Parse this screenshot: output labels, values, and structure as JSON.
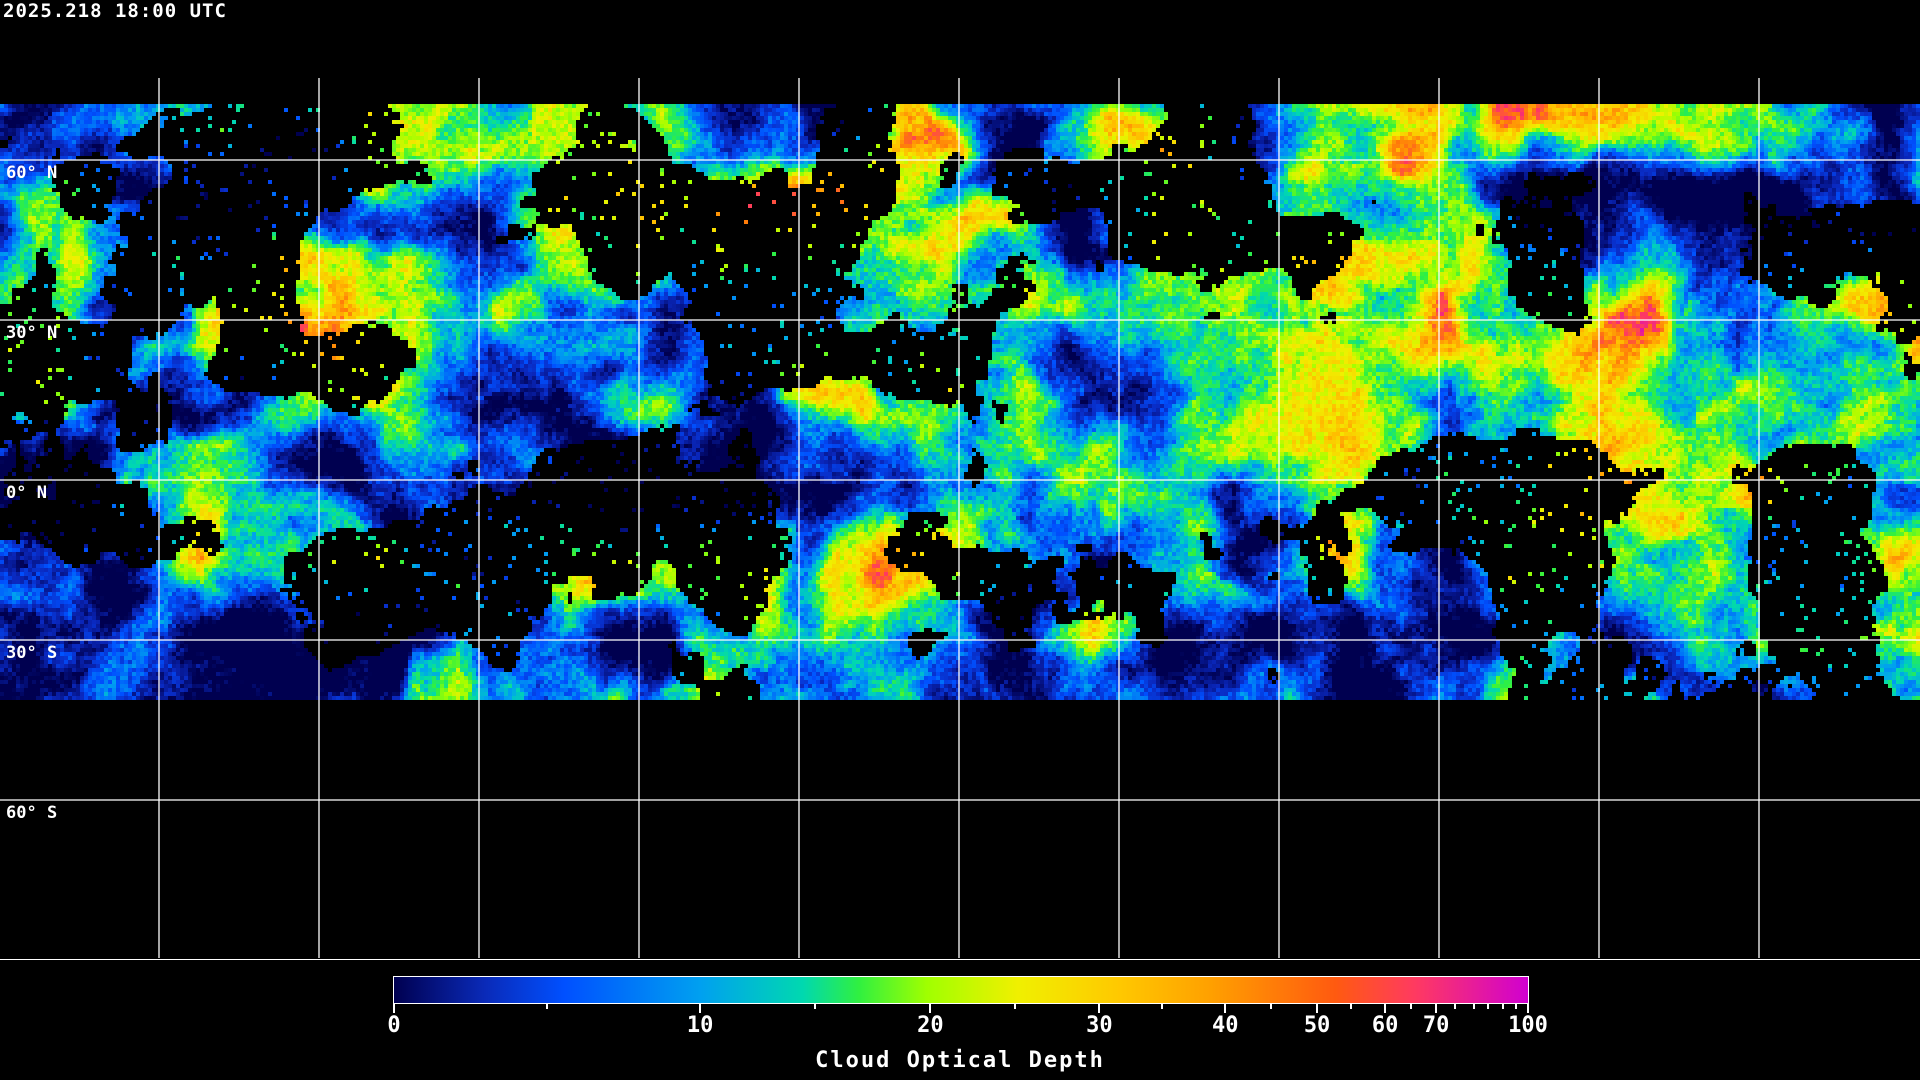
{
  "timestamp": "2025.218 18:00 UTC",
  "latitude_labels": [
    "60° N",
    "30° N",
    "0° N",
    "30° S",
    "60° S"
  ],
  "colorbar": {
    "title": "Cloud Optical Depth",
    "range": [
      0,
      100
    ],
    "tick_labels": [
      "0",
      "10",
      "20",
      "30",
      "40",
      "50",
      "60",
      "70",
      "100"
    ],
    "colors": [
      "#000050",
      "#0050ff",
      "#00a0f0",
      "#30f040",
      "#a0ff00",
      "#f0f000",
      "#ffa000",
      "#ff5a10",
      "#ff3a60",
      "#d000d0"
    ]
  }
}
